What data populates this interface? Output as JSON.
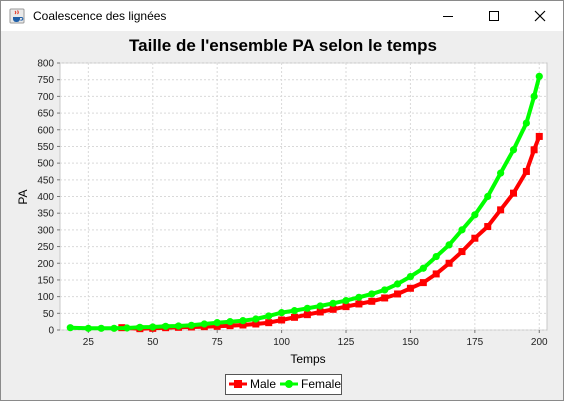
{
  "window": {
    "title": "Coalescence des lignées",
    "icon": "java-cup-icon",
    "controls": [
      "minimize-icon",
      "maximize-icon",
      "close-icon"
    ]
  },
  "chart_data": {
    "type": "line",
    "title": "Taille de l'ensemble PA selon le temps",
    "xlabel": "Temps",
    "ylabel": "PA",
    "xlim": [
      14,
      203
    ],
    "ylim": [
      0,
      800
    ],
    "xticks": [
      25,
      50,
      75,
      100,
      125,
      150,
      175,
      200
    ],
    "yticks": [
      0,
      50,
      100,
      150,
      200,
      250,
      300,
      350,
      400,
      450,
      500,
      550,
      600,
      650,
      700,
      750,
      800
    ],
    "grid": true,
    "legend_position": "bottom",
    "series": [
      {
        "name": "Male",
        "color": "#ff0000",
        "marker": "square",
        "points": [
          [
            38,
            7
          ],
          [
            45,
            4
          ],
          [
            50,
            5
          ],
          [
            55,
            7
          ],
          [
            60,
            8
          ],
          [
            65,
            9
          ],
          [
            70,
            10
          ],
          [
            75,
            11
          ],
          [
            80,
            13
          ],
          [
            85,
            15
          ],
          [
            90,
            18
          ],
          [
            95,
            22
          ],
          [
            100,
            30
          ],
          [
            105,
            38
          ],
          [
            110,
            46
          ],
          [
            115,
            54
          ],
          [
            120,
            62
          ],
          [
            125,
            70
          ],
          [
            130,
            78
          ],
          [
            135,
            86
          ],
          [
            140,
            96
          ],
          [
            145,
            108
          ],
          [
            150,
            125
          ],
          [
            155,
            142
          ],
          [
            160,
            168
          ],
          [
            165,
            200
          ],
          [
            170,
            235
          ],
          [
            175,
            275
          ],
          [
            180,
            310
          ],
          [
            185,
            360
          ],
          [
            190,
            410
          ],
          [
            195,
            475
          ],
          [
            198,
            540
          ],
          [
            200,
            580
          ]
        ]
      },
      {
        "name": "Female",
        "color": "#00ff00",
        "marker": "circle",
        "points": [
          [
            18,
            7
          ],
          [
            25,
            5
          ],
          [
            30,
            5
          ],
          [
            35,
            5
          ],
          [
            40,
            6
          ],
          [
            45,
            8
          ],
          [
            50,
            9
          ],
          [
            55,
            11
          ],
          [
            60,
            12
          ],
          [
            65,
            14
          ],
          [
            70,
            18
          ],
          [
            75,
            22
          ],
          [
            80,
            25
          ],
          [
            85,
            28
          ],
          [
            90,
            33
          ],
          [
            95,
            42
          ],
          [
            100,
            52
          ],
          [
            105,
            58
          ],
          [
            110,
            65
          ],
          [
            115,
            72
          ],
          [
            120,
            80
          ],
          [
            125,
            88
          ],
          [
            130,
            98
          ],
          [
            135,
            108
          ],
          [
            140,
            120
          ],
          [
            145,
            138
          ],
          [
            150,
            160
          ],
          [
            155,
            185
          ],
          [
            160,
            220
          ],
          [
            165,
            255
          ],
          [
            170,
            300
          ],
          [
            175,
            345
          ],
          [
            180,
            400
          ],
          [
            185,
            470
          ],
          [
            190,
            540
          ],
          [
            195,
            620
          ],
          [
            198,
            700
          ],
          [
            200,
            760
          ]
        ]
      }
    ]
  }
}
